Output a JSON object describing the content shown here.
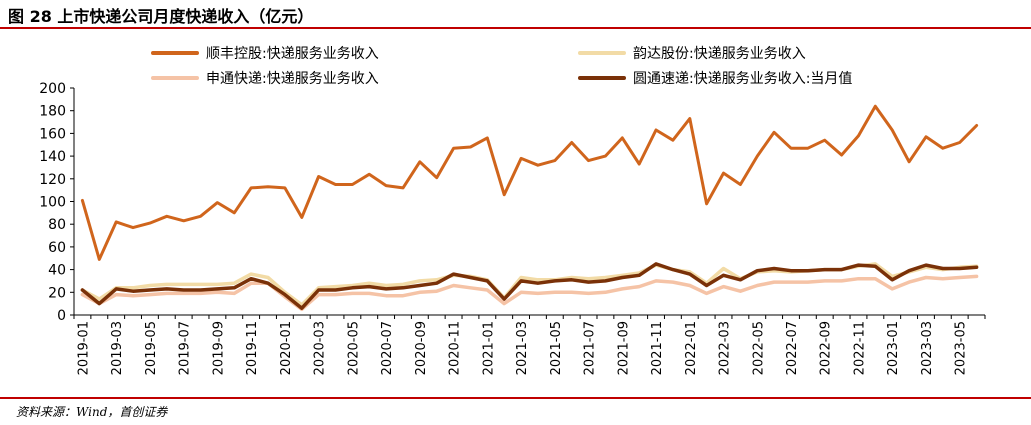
{
  "figure_title": "图 28 上市快递公司月度快递收入（亿元）",
  "source": "资料来源：Wind，首创证券",
  "chart_data": {
    "type": "line",
    "ylim": [
      0,
      200
    ],
    "yticks": [
      "0",
      "20",
      "40",
      "60",
      "80",
      "100",
      "120",
      "140",
      "160",
      "180",
      "200"
    ],
    "x": [
      "2019-01",
      "2019-02",
      "2019-03",
      "2019-04",
      "2019-05",
      "2019-06",
      "2019-07",
      "2019-08",
      "2019-09",
      "2019-10",
      "2019-11",
      "2019-12",
      "2020-01",
      "2020-02",
      "2020-03",
      "2020-04",
      "2020-05",
      "2020-06",
      "2020-07",
      "2020-08",
      "2020-09",
      "2020-10",
      "2020-11",
      "2020-12",
      "2021-01",
      "2021-02",
      "2021-03",
      "2021-04",
      "2021-05",
      "2021-06",
      "2021-07",
      "2021-08",
      "2021-09",
      "2021-10",
      "2021-11",
      "2021-12",
      "2022-01",
      "2022-02",
      "2022-03",
      "2022-04",
      "2022-05",
      "2022-06",
      "2022-07",
      "2022-08",
      "2022-09",
      "2022-10",
      "2022-11",
      "2022-12",
      "2023-01",
      "2023-02",
      "2023-03",
      "2023-04",
      "2023-05",
      "2023-06"
    ],
    "xtick_labels": [
      "2019-01",
      "2019-03",
      "2019-05",
      "2019-07",
      "2019-09",
      "2019-11",
      "2020-01",
      "2020-03",
      "2020-05",
      "2020-07",
      "2020-09",
      "2020-11",
      "2021-01",
      "2021-03",
      "2021-05",
      "2021-07",
      "2021-09",
      "2021-11",
      "2022-01",
      "2022-03",
      "2022-05",
      "2022-07",
      "2022-09",
      "2022-11",
      "2023-01",
      "2023-03",
      "2023-05"
    ],
    "legend_position": "top",
    "series": [
      {
        "name": "顺丰控股:快递服务业务收入",
        "color": "#d0651c",
        "values": [
          101,
          49,
          82,
          77,
          81,
          87,
          83,
          87,
          99,
          90,
          112,
          113,
          112,
          86,
          122,
          115,
          115,
          124,
          114,
          112,
          135,
          121,
          147,
          148,
          156,
          106,
          138,
          132,
          136,
          152,
          136,
          140,
          156,
          133,
          163,
          154,
          173,
          98,
          125,
          115,
          140,
          161,
          147,
          147,
          154,
          141,
          158,
          184,
          163,
          135,
          157,
          147,
          152,
          167
        ]
      },
      {
        "name": "韵达股份:快递服务业务收入",
        "color": "#f2dba6",
        "values": [
          22,
          14,
          24,
          24,
          26,
          27,
          27,
          27,
          27,
          28,
          36,
          33,
          20,
          9,
          24,
          25,
          26,
          28,
          26,
          27,
          30,
          31,
          35,
          34,
          31,
          15,
          33,
          31,
          31,
          33,
          32,
          33,
          35,
          37,
          44,
          40,
          38,
          28,
          41,
          32,
          38,
          39,
          38,
          39,
          40,
          40,
          43,
          45,
          34,
          38,
          42,
          40,
          42,
          43
        ]
      },
      {
        "name": "申通快递:快递服务业务收入",
        "color": "#f5c3a6",
        "values": [
          18,
          10,
          18,
          17,
          18,
          19,
          19,
          19,
          20,
          19,
          28,
          28,
          16,
          5,
          18,
          18,
          19,
          19,
          17,
          17,
          20,
          21,
          26,
          24,
          22,
          10,
          20,
          19,
          20,
          20,
          19,
          20,
          23,
          25,
          30,
          29,
          26,
          19,
          25,
          21,
          26,
          29,
          29,
          29,
          30,
          30,
          32,
          32,
          23,
          29,
          33,
          32,
          33,
          34
        ]
      },
      {
        "name": "圆通速递:快递服务业务收入:当月值",
        "color": "#7a3108",
        "values": [
          22,
          10,
          23,
          21,
          22,
          23,
          22,
          22,
          23,
          24,
          32,
          28,
          18,
          6,
          22,
          22,
          24,
          25,
          23,
          24,
          26,
          28,
          36,
          33,
          30,
          14,
          30,
          28,
          30,
          31,
          29,
          30,
          33,
          35,
          45,
          40,
          36,
          26,
          35,
          31,
          39,
          41,
          39,
          39,
          40,
          40,
          44,
          43,
          31,
          39,
          44,
          41,
          41,
          42
        ]
      }
    ]
  }
}
